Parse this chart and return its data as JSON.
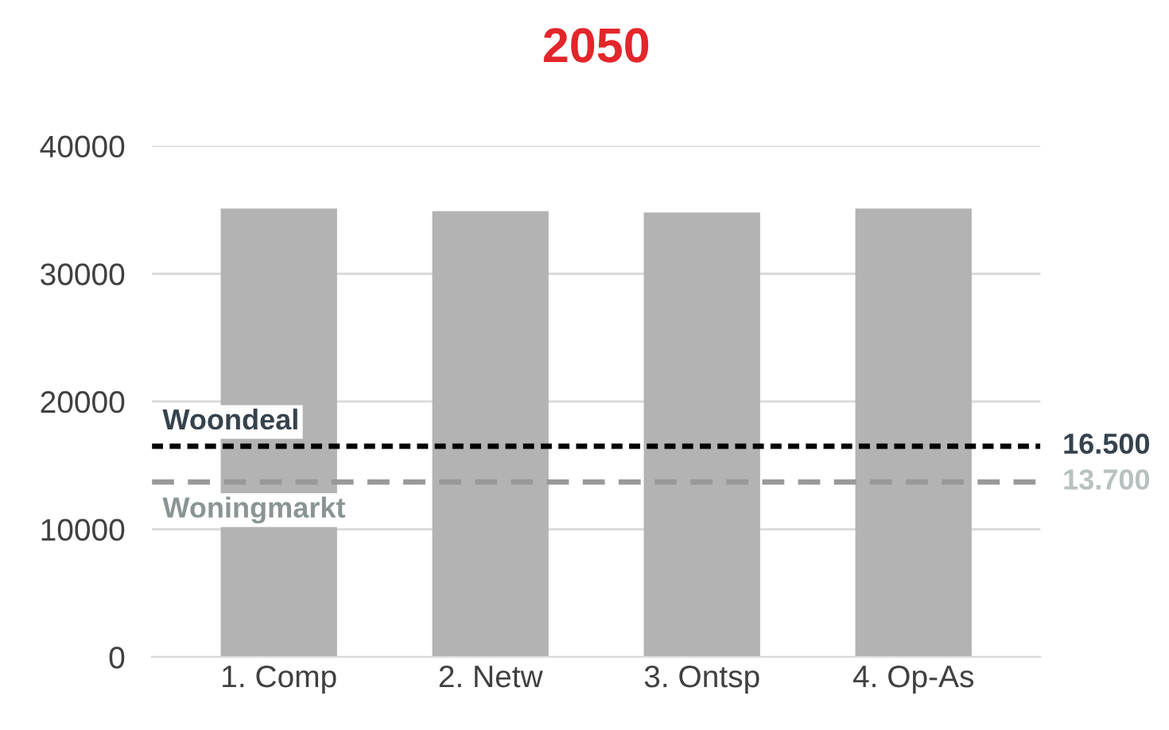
{
  "chart_data": {
    "type": "bar",
    "title": "2050",
    "categories": [
      "1. Comp",
      "2. Netw",
      "3. Ontsp",
      "4. Op-As"
    ],
    "values": [
      35100,
      34900,
      34800,
      35100
    ],
    "color": "#b3b3b3",
    "ylim": [
      0,
      40000
    ],
    "yticks": [
      0,
      10000,
      20000,
      30000,
      40000
    ],
    "grid": "y",
    "ref_lines": [
      {
        "axis": "y",
        "value": 16500,
        "label": "Woondeal",
        "color": "#000000",
        "line_style": "dotted"
      },
      {
        "axis": "y",
        "value": 13700,
        "label": "Woningmarkt",
        "color": "#999999",
        "line_style": "dashed"
      }
    ],
    "annotations": [
      "16.500",
      "13.700"
    ]
  }
}
